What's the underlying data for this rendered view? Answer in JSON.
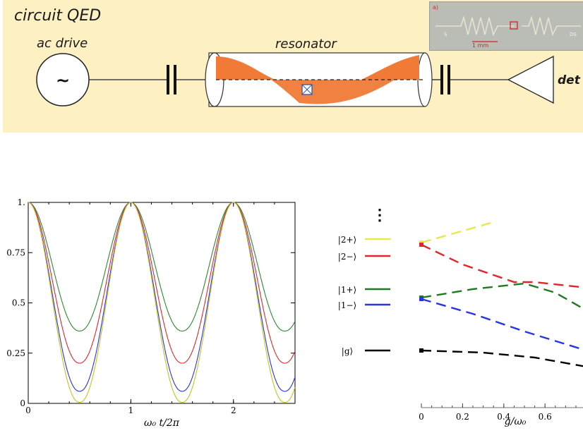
{
  "banner": {
    "title": "circuit QED",
    "drive_label": "ac drive",
    "drive_symbol": "~",
    "resonator_label": "resonator",
    "detector_label": "det",
    "inset": {
      "panel_label": "a)",
      "scale_label": "1 mm",
      "left_port": "S",
      "right_port": "DS"
    },
    "fill_color": "#fdf1c3",
    "mode_color": "#f07a36"
  },
  "chart_data": [
    {
      "type": "line",
      "xlabel": "ω₀ t/2π",
      "ylabel": "",
      "xlim": [
        0,
        2.6
      ],
      "ylim": [
        0,
        1
      ],
      "xticks": [
        "0",
        "1",
        "2"
      ],
      "yticks": [
        "0",
        "0.25",
        "0.5",
        "0.75",
        "1."
      ],
      "series": [
        {
          "color": "#2e8b2e",
          "min": 0.36
        },
        {
          "color": "#e0262a",
          "min": 0.2
        },
        {
          "color": "#2a35e0",
          "min": 0.06
        },
        {
          "color": "#c9c21a",
          "min": 0.005
        }
      ]
    },
    {
      "type": "line",
      "xlabel": "g/ω₀",
      "xlim": [
        0,
        0.8
      ],
      "xticks": [
        "0",
        "0.2",
        "0.4",
        "0.6",
        "0"
      ],
      "levels": [
        {
          "label": "|2+⟩",
          "color": "#e8e84a"
        },
        {
          "label": "|2−⟩",
          "color": "#e0262a"
        },
        {
          "label": "|1+⟩",
          "color": "#1f7a1f"
        },
        {
          "label": "|1−⟩",
          "color": "#2a35e0"
        },
        {
          "label": "|g⟩",
          "color": "#000000"
        }
      ],
      "ellipsis": "⋮"
    }
  ]
}
